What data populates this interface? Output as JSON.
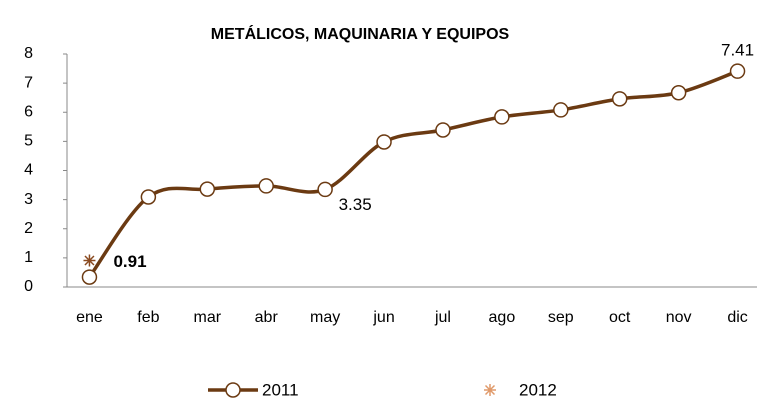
{
  "chart_data": {
    "type": "line",
    "title": "METÁLICOS, MAQUINARIA Y EQUIPOS",
    "categories": [
      "ene",
      "feb",
      "mar",
      "abr",
      "may",
      "jun",
      "jul",
      "ago",
      "sep",
      "oct",
      "nov",
      "dic"
    ],
    "series": [
      {
        "name": "2011",
        "color": "#6b3a12",
        "marker": "circle",
        "smooth": true,
        "label_indices": [
          4,
          11
        ],
        "label_bold": false,
        "values": [
          0.34,
          3.09,
          3.36,
          3.47,
          3.35,
          4.98,
          5.39,
          5.84,
          6.08,
          6.46,
          6.67,
          7.41
        ]
      },
      {
        "name": "2012",
        "color": "#8a4a20",
        "marker": "asterisk",
        "smooth": true,
        "label_indices": [
          0
        ],
        "label_bold": true,
        "values": [
          0.91,
          null,
          null,
          null,
          null,
          null,
          null,
          null,
          null,
          null,
          null,
          null
        ]
      }
    ],
    "ylim": [
      0,
      8
    ],
    "yticks": [
      0,
      1,
      2,
      3,
      4,
      5,
      6,
      7,
      8
    ],
    "grid": false,
    "legend": "bottom"
  }
}
